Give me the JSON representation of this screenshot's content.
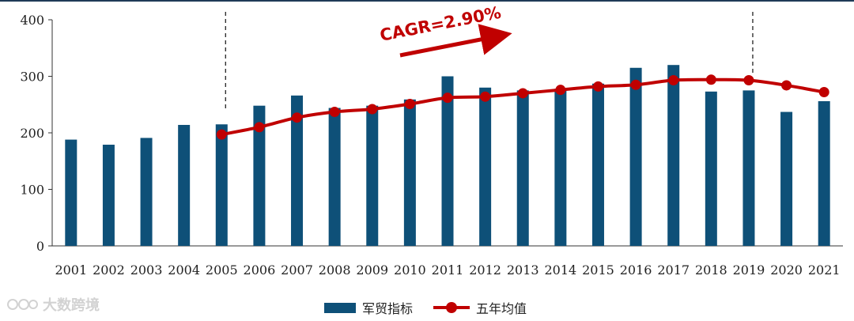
{
  "colors": {
    "bar": "#0e5078",
    "line": "#c00000",
    "axis": "#333333"
  },
  "annotation": {
    "text": "CAGR=2.90%",
    "color": "#c00000"
  },
  "watermark": {
    "text": "大数跨境"
  },
  "legend": [
    {
      "label": "军贸指标",
      "type": "bar"
    },
    {
      "label": "五年均值",
      "type": "line"
    }
  ],
  "chart_data": {
    "type": "bar",
    "categories": [
      "2001",
      "2002",
      "2003",
      "2004",
      "2005",
      "2006",
      "2007",
      "2008",
      "2009",
      "2010",
      "2011",
      "2012",
      "2013",
      "2014",
      "2015",
      "2016",
      "2017",
      "2018",
      "2019",
      "2020",
      "2021"
    ],
    "ylim": [
      0,
      400
    ],
    "yticks": [
      0,
      100,
      200,
      300,
      400
    ],
    "series": [
      {
        "name": "军贸指标",
        "type": "bar",
        "values": [
          188,
          179,
          191,
          214,
          215,
          248,
          266,
          244,
          248,
          259,
          300,
          280,
          275,
          278,
          287,
          315,
          320,
          273,
          275,
          237,
          256
        ]
      },
      {
        "name": "五年均值",
        "type": "line",
        "values": [
          null,
          null,
          null,
          null,
          197,
          210,
          227,
          237,
          242,
          251,
          262,
          264,
          270,
          276,
          282,
          285,
          293,
          294,
          293,
          284,
          272
        ]
      }
    ],
    "vlines": [
      "2005",
      "2019"
    ],
    "legend_position": "bottom"
  }
}
